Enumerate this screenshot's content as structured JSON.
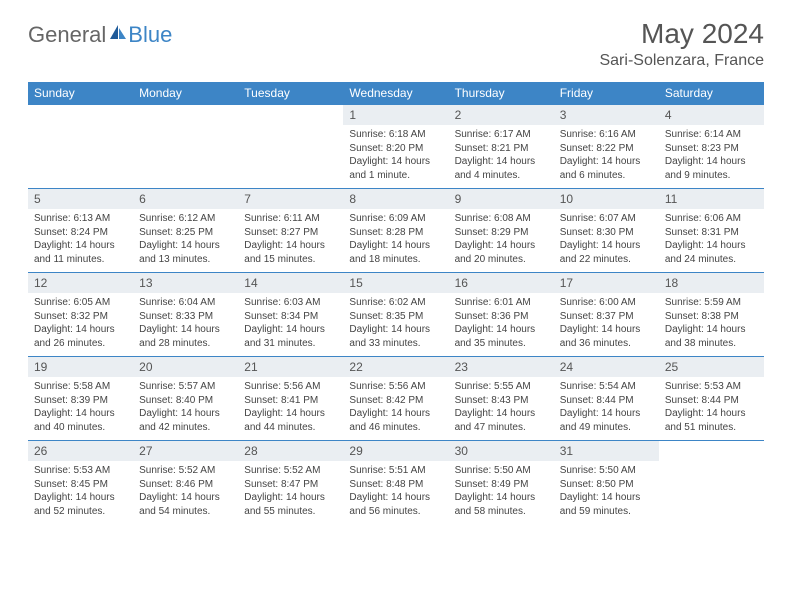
{
  "brand": {
    "word1": "General",
    "word2": "Blue"
  },
  "title": "May 2024",
  "location": "Sari-Solenzara, France",
  "colors": {
    "header_bg": "#3d85c6",
    "header_text": "#ffffff",
    "daynum_bg": "#eaeef2",
    "border": "#3d85c6",
    "text": "#444444"
  },
  "daysOfWeek": [
    "Sunday",
    "Monday",
    "Tuesday",
    "Wednesday",
    "Thursday",
    "Friday",
    "Saturday"
  ],
  "weeks": [
    [
      null,
      null,
      null,
      {
        "n": "1",
        "sr": "6:18 AM",
        "ss": "8:20 PM",
        "dl": "14 hours and 1 minute."
      },
      {
        "n": "2",
        "sr": "6:17 AM",
        "ss": "8:21 PM",
        "dl": "14 hours and 4 minutes."
      },
      {
        "n": "3",
        "sr": "6:16 AM",
        "ss": "8:22 PM",
        "dl": "14 hours and 6 minutes."
      },
      {
        "n": "4",
        "sr": "6:14 AM",
        "ss": "8:23 PM",
        "dl": "14 hours and 9 minutes."
      }
    ],
    [
      {
        "n": "5",
        "sr": "6:13 AM",
        "ss": "8:24 PM",
        "dl": "14 hours and 11 minutes."
      },
      {
        "n": "6",
        "sr": "6:12 AM",
        "ss": "8:25 PM",
        "dl": "14 hours and 13 minutes."
      },
      {
        "n": "7",
        "sr": "6:11 AM",
        "ss": "8:27 PM",
        "dl": "14 hours and 15 minutes."
      },
      {
        "n": "8",
        "sr": "6:09 AM",
        "ss": "8:28 PM",
        "dl": "14 hours and 18 minutes."
      },
      {
        "n": "9",
        "sr": "6:08 AM",
        "ss": "8:29 PM",
        "dl": "14 hours and 20 minutes."
      },
      {
        "n": "10",
        "sr": "6:07 AM",
        "ss": "8:30 PM",
        "dl": "14 hours and 22 minutes."
      },
      {
        "n": "11",
        "sr": "6:06 AM",
        "ss": "8:31 PM",
        "dl": "14 hours and 24 minutes."
      }
    ],
    [
      {
        "n": "12",
        "sr": "6:05 AM",
        "ss": "8:32 PM",
        "dl": "14 hours and 26 minutes."
      },
      {
        "n": "13",
        "sr": "6:04 AM",
        "ss": "8:33 PM",
        "dl": "14 hours and 28 minutes."
      },
      {
        "n": "14",
        "sr": "6:03 AM",
        "ss": "8:34 PM",
        "dl": "14 hours and 31 minutes."
      },
      {
        "n": "15",
        "sr": "6:02 AM",
        "ss": "8:35 PM",
        "dl": "14 hours and 33 minutes."
      },
      {
        "n": "16",
        "sr": "6:01 AM",
        "ss": "8:36 PM",
        "dl": "14 hours and 35 minutes."
      },
      {
        "n": "17",
        "sr": "6:00 AM",
        "ss": "8:37 PM",
        "dl": "14 hours and 36 minutes."
      },
      {
        "n": "18",
        "sr": "5:59 AM",
        "ss": "8:38 PM",
        "dl": "14 hours and 38 minutes."
      }
    ],
    [
      {
        "n": "19",
        "sr": "5:58 AM",
        "ss": "8:39 PM",
        "dl": "14 hours and 40 minutes."
      },
      {
        "n": "20",
        "sr": "5:57 AM",
        "ss": "8:40 PM",
        "dl": "14 hours and 42 minutes."
      },
      {
        "n": "21",
        "sr": "5:56 AM",
        "ss": "8:41 PM",
        "dl": "14 hours and 44 minutes."
      },
      {
        "n": "22",
        "sr": "5:56 AM",
        "ss": "8:42 PM",
        "dl": "14 hours and 46 minutes."
      },
      {
        "n": "23",
        "sr": "5:55 AM",
        "ss": "8:43 PM",
        "dl": "14 hours and 47 minutes."
      },
      {
        "n": "24",
        "sr": "5:54 AM",
        "ss": "8:44 PM",
        "dl": "14 hours and 49 minutes."
      },
      {
        "n": "25",
        "sr": "5:53 AM",
        "ss": "8:44 PM",
        "dl": "14 hours and 51 minutes."
      }
    ],
    [
      {
        "n": "26",
        "sr": "5:53 AM",
        "ss": "8:45 PM",
        "dl": "14 hours and 52 minutes."
      },
      {
        "n": "27",
        "sr": "5:52 AM",
        "ss": "8:46 PM",
        "dl": "14 hours and 54 minutes."
      },
      {
        "n": "28",
        "sr": "5:52 AM",
        "ss": "8:47 PM",
        "dl": "14 hours and 55 minutes."
      },
      {
        "n": "29",
        "sr": "5:51 AM",
        "ss": "8:48 PM",
        "dl": "14 hours and 56 minutes."
      },
      {
        "n": "30",
        "sr": "5:50 AM",
        "ss": "8:49 PM",
        "dl": "14 hours and 58 minutes."
      },
      {
        "n": "31",
        "sr": "5:50 AM",
        "ss": "8:50 PM",
        "dl": "14 hours and 59 minutes."
      },
      null
    ]
  ],
  "labels": {
    "sunrise": "Sunrise: ",
    "sunset": "Sunset: ",
    "daylight": "Daylight: "
  }
}
